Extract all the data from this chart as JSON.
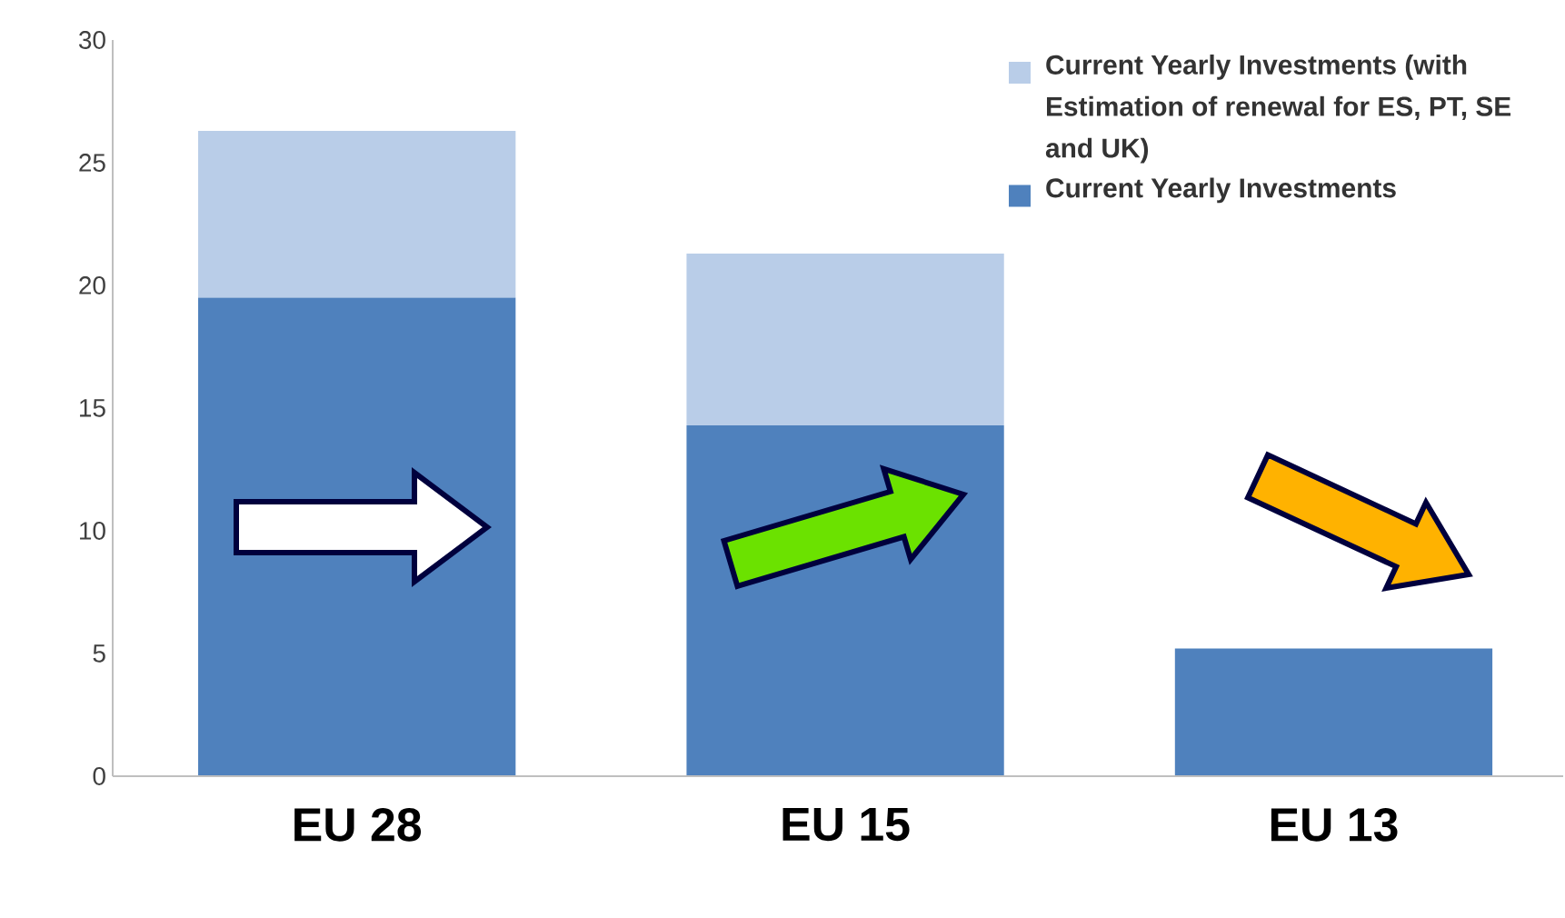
{
  "chart_data": {
    "type": "bar",
    "stacked": true,
    "categories": [
      "EU 28",
      "EU 15",
      "EU 13"
    ],
    "series": [
      {
        "name": "Current Yearly Investments",
        "color": "#4f81bd",
        "values": [
          19.5,
          14.3,
          5.2
        ]
      },
      {
        "name": "Current Yearly Investments (with Estimation of renewal for ES, PT, SE and UK)",
        "color": "#b9cde8",
        "values": [
          6.8,
          7.0,
          null
        ]
      }
    ],
    "ylim": [
      0,
      30
    ],
    "yticks": [
      0,
      5,
      10,
      15,
      20,
      25,
      30
    ],
    "legend": "top right"
  }
}
